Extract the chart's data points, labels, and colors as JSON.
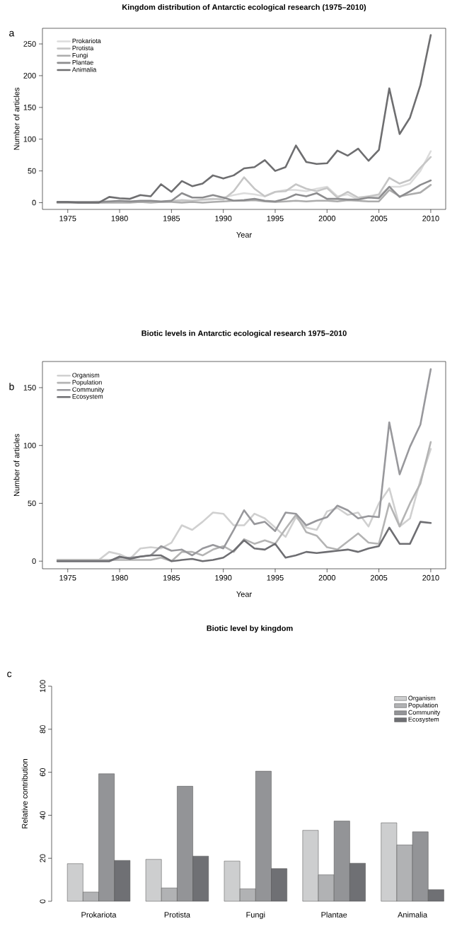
{
  "chart_data": [
    {
      "type": "line",
      "title": "Kingdom distribution of Antarctic ecological research (1975–2010)",
      "xlabel": "Year",
      "ylabel": "Number of articles",
      "annotations": [
        "a"
      ],
      "legend": "top left",
      "x": [
        1974,
        1975,
        1976,
        1977,
        1978,
        1979,
        1980,
        1981,
        1982,
        1983,
        1984,
        1985,
        1986,
        1987,
        1988,
        1989,
        1990,
        1991,
        1992,
        1993,
        1994,
        1995,
        1996,
        1997,
        1998,
        1999,
        2000,
        2001,
        2002,
        2003,
        2004,
        2005,
        2006,
        2007,
        2008,
        2009,
        2010
      ],
      "xlim": [
        1972.56,
        2011.44
      ],
      "xticks": [
        1975,
        1980,
        1985,
        1990,
        1995,
        2000,
        2005,
        2010
      ],
      "ylim": [
        -10.6,
        274.6
      ],
      "yticks": [
        0,
        50,
        100,
        150,
        200,
        250
      ],
      "series": [
        {
          "name": "Prokariota",
          "color": "#dcdcdc",
          "values": [
            0,
            0,
            1,
            1,
            2,
            2,
            1,
            1,
            1,
            2,
            1,
            2,
            2,
            3,
            4,
            5,
            8,
            12,
            15,
            13,
            10,
            17,
            20,
            20,
            18,
            22,
            25,
            10,
            13,
            5,
            10,
            10,
            25,
            25,
            30,
            50,
            81
          ]
        },
        {
          "name": "Protista",
          "color": "#c6c6c6",
          "values": [
            0,
            0,
            0,
            0,
            0,
            1,
            2,
            2,
            1,
            2,
            1,
            3,
            4,
            3,
            5,
            6,
            5,
            18,
            40,
            22,
            10,
            17,
            18,
            29,
            22,
            18,
            23,
            8,
            17,
            8,
            10,
            13,
            39,
            30,
            36,
            55,
            72
          ]
        },
        {
          "name": "Fungi",
          "color": "#acacac",
          "values": [
            0,
            0,
            0,
            0,
            0,
            0,
            0,
            0,
            1,
            0,
            1,
            1,
            0,
            1,
            0,
            1,
            2,
            3,
            3,
            4,
            2,
            1,
            2,
            3,
            2,
            3,
            3,
            2,
            4,
            3,
            2,
            2,
            20,
            10,
            13,
            16,
            28
          ]
        },
        {
          "name": "Plantae",
          "color": "#8c8c8e",
          "values": [
            1,
            1,
            1,
            1,
            1,
            2,
            3,
            2,
            3,
            3,
            2,
            3,
            15,
            8,
            8,
            12,
            8,
            3,
            4,
            6,
            3,
            2,
            6,
            13,
            10,
            15,
            6,
            6,
            5,
            5,
            8,
            7,
            25,
            9,
            18,
            28,
            35
          ]
        },
        {
          "name": "Animalia",
          "color": "#6e6e70",
          "values": [
            1,
            1,
            0,
            0,
            0,
            9,
            7,
            6,
            12,
            10,
            29,
            17,
            34,
            26,
            30,
            43,
            38,
            43,
            54,
            56,
            67,
            50,
            56,
            90,
            64,
            61,
            62,
            82,
            74,
            85,
            66,
            83,
            180,
            108,
            134,
            185,
            264
          ]
        }
      ]
    },
    {
      "type": "line",
      "title": "Biotic levels in Antarctic ecological research 1975–2010",
      "xlabel": "Year",
      "ylabel": "Number of articles",
      "annotations": [
        "b"
      ],
      "legend": "top left",
      "x": [
        1974,
        1975,
        1976,
        1977,
        1978,
        1979,
        1980,
        1981,
        1982,
        1983,
        1984,
        1985,
        1986,
        1987,
        1988,
        1989,
        1990,
        1991,
        1992,
        1993,
        1994,
        1995,
        1996,
        1997,
        1998,
        1999,
        2000,
        2001,
        2002,
        2003,
        2004,
        2005,
        2006,
        2007,
        2008,
        2009,
        2010
      ],
      "xlim": [
        1972.56,
        2011.44
      ],
      "xticks": [
        1975,
        1980,
        1985,
        1990,
        1995,
        2000,
        2005,
        2010
      ],
      "ylim": [
        -6.6,
        172.6
      ],
      "yticks": [
        0,
        50,
        100,
        150
      ],
      "series": [
        {
          "name": "Organism",
          "color": "#d0d0d0",
          "values": [
            1,
            1,
            1,
            1,
            1,
            8,
            6,
            2,
            11,
            12,
            11,
            16,
            31,
            27,
            34,
            42,
            41,
            31,
            31,
            41,
            37,
            29,
            21,
            38,
            29,
            27,
            43,
            46,
            40,
            42,
            30,
            50,
            63,
            30,
            37,
            70,
            97
          ]
        },
        {
          "name": "Population",
          "color": "#b4b4b4",
          "values": [
            1,
            1,
            1,
            1,
            1,
            1,
            1,
            1,
            1,
            1,
            3,
            0,
            8,
            8,
            5,
            10,
            13,
            8,
            19,
            15,
            18,
            15,
            28,
            40,
            25,
            22,
            12,
            10,
            17,
            24,
            16,
            15,
            50,
            30,
            50,
            67,
            103
          ]
        },
        {
          "name": "Community",
          "color": "#98989c",
          "values": [
            0,
            0,
            0,
            0,
            0,
            0,
            3,
            3,
            4,
            5,
            13,
            9,
            10,
            5,
            11,
            14,
            11,
            27,
            44,
            32,
            34,
            26,
            42,
            41,
            31,
            35,
            38,
            48,
            44,
            37,
            39,
            38,
            120,
            75,
            99,
            118,
            166
          ]
        },
        {
          "name": "Ecosystem",
          "color": "#6e6e72",
          "values": [
            0,
            0,
            0,
            0,
            0,
            0,
            4,
            2,
            4,
            5,
            5,
            0,
            1,
            2,
            0,
            1,
            3,
            9,
            18,
            11,
            10,
            15,
            3,
            5,
            8,
            7,
            8,
            9,
            10,
            8,
            11,
            13,
            29,
            15,
            15,
            34,
            33
          ]
        }
      ]
    },
    {
      "type": "bar",
      "title": "Biotic level by kingdom",
      "ylabel": "Relative contribution",
      "annotations": [
        "c"
      ],
      "legend": "top right",
      "categories": [
        "Prokariota",
        "Protista",
        "Fungi",
        "Plantae",
        "Animalia"
      ],
      "ylim": [
        0,
        100
      ],
      "yticks": [
        0,
        20,
        40,
        60,
        80,
        100
      ],
      "series": [
        {
          "name": "Organism",
          "color": "#cdcecf",
          "values": [
            17.5,
            19.5,
            18.7,
            33,
            36.5
          ]
        },
        {
          "name": "Population",
          "color": "#b1b2b4",
          "values": [
            4.3,
            6.2,
            5.8,
            12.3,
            26.2
          ]
        },
        {
          "name": "Community",
          "color": "#939497",
          "values": [
            59.3,
            53.5,
            60.5,
            37.3,
            32.3
          ]
        },
        {
          "name": "Ecosystem",
          "color": "#6f7074",
          "values": [
            19,
            21,
            15.2,
            17.7,
            5.4
          ]
        }
      ]
    }
  ]
}
